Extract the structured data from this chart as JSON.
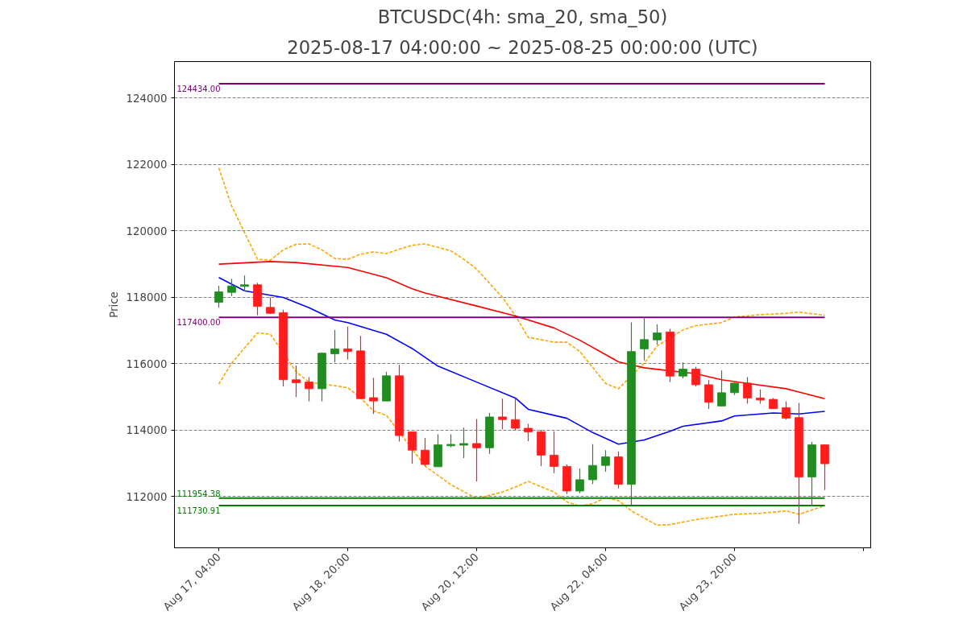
{
  "chart_data": {
    "type": "candlestick",
    "title": "BTCUSDC(4h: sma_20, sma_50)",
    "subtitle": "2025-08-17 04:00:00 ~ 2025-08-25 00:00:00 (UTC)",
    "ylabel": "Price",
    "x": [
      "2025-08-17T04:00",
      "2025-08-17T08:00",
      "2025-08-17T12:00",
      "2025-08-17T16:00",
      "2025-08-17T20:00",
      "2025-08-18T00:00",
      "2025-08-18T04:00",
      "2025-08-18T08:00",
      "2025-08-18T12:00",
      "2025-08-18T16:00",
      "2025-08-18T20:00",
      "2025-08-19T00:00",
      "2025-08-19T04:00",
      "2025-08-19T08:00",
      "2025-08-19T12:00",
      "2025-08-19T16:00",
      "2025-08-19T20:00",
      "2025-08-20T00:00",
      "2025-08-20T04:00",
      "2025-08-20T08:00",
      "2025-08-20T12:00",
      "2025-08-20T16:00",
      "2025-08-20T20:00",
      "2025-08-21T00:00",
      "2025-08-21T04:00",
      "2025-08-21T08:00",
      "2025-08-21T12:00",
      "2025-08-21T16:00",
      "2025-08-21T20:00",
      "2025-08-22T00:00",
      "2025-08-22T04:00",
      "2025-08-22T08:00",
      "2025-08-22T12:00",
      "2025-08-22T16:00",
      "2025-08-22T20:00",
      "2025-08-23T00:00",
      "2025-08-23T04:00",
      "2025-08-23T08:00",
      "2025-08-23T12:00",
      "2025-08-23T16:00",
      "2025-08-23T20:00",
      "2025-08-24T00:00",
      "2025-08-24T04:00",
      "2025-08-24T08:00",
      "2025-08-24T12:00",
      "2025-08-24T16:00",
      "2025-08-24T20:00",
      "2025-08-25T00:00"
    ],
    "ohlc": [
      [
        117850,
        118350,
        117690,
        118170
      ],
      [
        118150,
        118560,
        118040,
        118345
      ],
      [
        118330,
        118660,
        118180,
        118380
      ],
      [
        118380,
        118440,
        117460,
        117730
      ],
      [
        117700,
        118000,
        117500,
        117520
      ],
      [
        117540,
        117630,
        115320,
        115520
      ],
      [
        115520,
        115950,
        115000,
        115430
      ],
      [
        115450,
        115600,
        114870,
        115250
      ],
      [
        115250,
        116330,
        114870,
        116320
      ],
      [
        116300,
        117020,
        116040,
        116450
      ],
      [
        116450,
        117120,
        116130,
        116370
      ],
      [
        116390,
        116840,
        114950,
        114950
      ],
      [
        114980,
        115580,
        114490,
        114880
      ],
      [
        114880,
        115760,
        114880,
        115640
      ],
      [
        115640,
        115970,
        113660,
        113840
      ],
      [
        113950,
        113960,
        112990,
        113400
      ],
      [
        113400,
        113770,
        112920,
        112970
      ],
      [
        112900,
        113880,
        112900,
        113560
      ],
      [
        113530,
        113880,
        113490,
        113575
      ],
      [
        113550,
        114080,
        113160,
        113600
      ],
      [
        113600,
        114340,
        112460,
        113470
      ],
      [
        113470,
        114520,
        113290,
        114400
      ],
      [
        114400,
        114950,
        114030,
        114320
      ],
      [
        114320,
        114950,
        114000,
        114060
      ],
      [
        114060,
        114190,
        113670,
        113950
      ],
      [
        113950,
        114010,
        112920,
        113250
      ],
      [
        113250,
        113970,
        112710,
        112910
      ],
      [
        112910,
        112970,
        112080,
        112170
      ],
      [
        112170,
        112850,
        112100,
        112510
      ],
      [
        112510,
        113580,
        112380,
        112940
      ],
      [
        112940,
        113400,
        112750,
        113200
      ],
      [
        113200,
        113360,
        112250,
        112370
      ],
      [
        112370,
        117250,
        111750,
        116370
      ],
      [
        116450,
        117410,
        116100,
        116730
      ],
      [
        116720,
        117190,
        116580,
        116930
      ],
      [
        116960,
        117050,
        115450,
        115630
      ],
      [
        115630,
        116040,
        115560,
        115840
      ],
      [
        115840,
        115910,
        115320,
        115370
      ],
      [
        115370,
        115510,
        114640,
        114840
      ],
      [
        114730,
        115800,
        114720,
        115130
      ],
      [
        115130,
        115430,
        115060,
        115420
      ],
      [
        115420,
        115600,
        114800,
        114970
      ],
      [
        114970,
        115230,
        114800,
        114910
      ],
      [
        114930,
        114970,
        114640,
        114650
      ],
      [
        114680,
        114870,
        114320,
        114360
      ],
      [
        114380,
        114820,
        111180,
        112590
      ],
      [
        112590,
        113650,
        111710,
        113560
      ],
      [
        113560,
        113570,
        112200,
        112990
      ]
    ],
    "colors": [
      "#228b22",
      "#228b22",
      "#228b22",
      "#ff1c1c",
      "#ff1c1c",
      "#ff1c1c",
      "#ff1c1c",
      "#ff1c1c",
      "#228b22",
      "#228b22",
      "#ff1c1c",
      "#ff1c1c",
      "#ff1c1c",
      "#228b22",
      "#ff1c1c",
      "#ff1c1c",
      "#ff1c1c",
      "#228b22",
      "#228b22",
      "#228b22",
      "#ff1c1c",
      "#228b22",
      "#ff1c1c",
      "#ff1c1c",
      "#ff1c1c",
      "#ff1c1c",
      "#ff1c1c",
      "#ff1c1c",
      "#228b22",
      "#228b22",
      "#228b22",
      "#ff1c1c",
      "#228b22",
      "#228b22",
      "#228b22",
      "#ff1c1c",
      "#228b22",
      "#ff1c1c",
      "#ff1c1c",
      "#228b22",
      "#228b22",
      "#ff1c1c",
      "#ff1c1c",
      "#ff1c1c",
      "#ff1c1c",
      "#ff1c1c",
      "#228b22",
      "#ff1c1c"
    ],
    "series": [
      {
        "type": "line",
        "color": "#ffa500",
        "line_style": "dashed",
        "x": [
          "2025-08-17T04:00",
          "2025-08-17T08:00",
          "2025-08-17T16:00",
          "2025-08-17T20:00",
          "2025-08-18T00:00",
          "2025-08-18T04:00",
          "2025-08-18T08:00",
          "2025-08-18T12:00",
          "2025-08-18T16:00",
          "2025-08-18T20:00",
          "2025-08-19T00:00",
          "2025-08-19T04:00",
          "2025-08-19T08:00",
          "2025-08-19T12:00",
          "2025-08-19T16:00",
          "2025-08-19T20:00",
          "2025-08-20T04:00",
          "2025-08-20T08:00",
          "2025-08-20T12:00",
          "2025-08-20T20:00",
          "2025-08-21T00:00",
          "2025-08-21T04:00",
          "2025-08-21T12:00",
          "2025-08-21T16:00",
          "2025-08-21T20:00",
          "2025-08-22T04:00",
          "2025-08-22T08:00",
          "2025-08-22T16:00",
          "2025-08-22T20:00",
          "2025-08-23T04:00",
          "2025-08-23T08:00",
          "2025-08-23T16:00",
          "2025-08-23T20:00",
          "2025-08-24T04:00",
          "2025-08-24T12:00",
          "2025-08-24T16:00",
          "2025-08-25T00:00"
        ],
        "values": [
          121900,
          120750,
          119150,
          119120,
          119430,
          119600,
          119610,
          119430,
          119170,
          119150,
          119300,
          119370,
          119320,
          119450,
          119570,
          119610,
          119400,
          119150,
          118850,
          118000,
          117450,
          116800,
          116650,
          116650,
          116370,
          115410,
          115250,
          116020,
          116540,
          117020,
          117150,
          117240,
          117410,
          117480,
          117520,
          117560,
          117460
        ]
      },
      {
        "type": "line",
        "color": "#ffa500",
        "line_style": "dashed",
        "x": [
          "2025-08-17T04:00",
          "2025-08-17T08:00",
          "2025-08-17T16:00",
          "2025-08-17T20:00",
          "2025-08-18T04:00",
          "2025-08-18T08:00",
          "2025-08-18T16:00",
          "2025-08-18T20:00",
          "2025-08-19T00:00",
          "2025-08-19T04:00",
          "2025-08-19T08:00",
          "2025-08-19T20:00",
          "2025-08-20T04:00",
          "2025-08-20T12:00",
          "2025-08-20T20:00",
          "2025-08-21T00:00",
          "2025-08-21T04:00",
          "2025-08-21T12:00",
          "2025-08-21T16:00",
          "2025-08-21T20:00",
          "2025-08-22T00:00",
          "2025-08-22T04:00",
          "2025-08-22T08:00",
          "2025-08-22T12:00",
          "2025-08-22T20:00",
          "2025-08-23T00:00",
          "2025-08-23T08:00",
          "2025-08-23T20:00",
          "2025-08-24T04:00",
          "2025-08-24T12:00",
          "2025-08-24T16:00",
          "2025-08-25T00:00"
        ],
        "values": [
          115390,
          116020,
          116930,
          116890,
          115760,
          115450,
          115340,
          115280,
          114970,
          114580,
          114450,
          112920,
          112360,
          111940,
          112140,
          112290,
          112460,
          112140,
          111840,
          111720,
          111790,
          111970,
          111880,
          111570,
          111140,
          111160,
          111310,
          111470,
          111500,
          111570,
          111470,
          111730
        ]
      },
      {
        "type": "line",
        "color": "#0000ff",
        "x": [
          "2025-08-17T04:00",
          "2025-08-17T12:00",
          "2025-08-18T00:00",
          "2025-08-18T08:00",
          "2025-08-18T16:00",
          "2025-08-18T20:00",
          "2025-08-19T08:00",
          "2025-08-19T16:00",
          "2025-08-20T00:00",
          "2025-08-20T12:00",
          "2025-08-21T00:00",
          "2025-08-21T04:00",
          "2025-08-21T16:00",
          "2025-08-22T00:00",
          "2025-08-22T08:00",
          "2025-08-22T16:00",
          "2025-08-23T00:00",
          "2025-08-23T04:00",
          "2025-08-23T16:00",
          "2025-08-23T20:00",
          "2025-08-24T08:00",
          "2025-08-24T16:00",
          "2025-08-25T00:00"
        ],
        "values": [
          118600,
          118200,
          118000,
          117690,
          117320,
          117240,
          116890,
          116460,
          115930,
          115450,
          114970,
          114630,
          114360,
          113930,
          113580,
          113710,
          113970,
          114120,
          114280,
          114430,
          114520,
          114490,
          114570
        ]
      },
      {
        "type": "line",
        "color": "#ff0000",
        "x": [
          "2025-08-17T04:00",
          "2025-08-17T20:00",
          "2025-08-18T04:00",
          "2025-08-18T20:00",
          "2025-08-19T08:00",
          "2025-08-19T16:00",
          "2025-08-19T20:00",
          "2025-08-20T12:00",
          "2025-08-21T00:00",
          "2025-08-21T12:00",
          "2025-08-21T20:00",
          "2025-08-22T08:00",
          "2025-08-22T16:00",
          "2025-08-23T00:00",
          "2025-08-23T08:00",
          "2025-08-23T16:00",
          "2025-08-24T00:00",
          "2025-08-24T12:00",
          "2025-08-24T16:00",
          "2025-08-25T00:00"
        ],
        "values": [
          119000,
          119080,
          119050,
          118900,
          118590,
          118260,
          118130,
          117740,
          117440,
          117080,
          116710,
          116060,
          115880,
          115790,
          115700,
          115520,
          115410,
          115250,
          115150,
          114950
        ]
      }
    ],
    "ref_lines": [
      {
        "axis": "y",
        "value": 124434.0,
        "label": "124434.00",
        "color": "#800080"
      },
      {
        "axis": "y",
        "value": 117400.0,
        "label": "117400.00",
        "color": "#800080"
      },
      {
        "axis": "y",
        "value": 111954.38,
        "label": "111954.38",
        "color": "#008000"
      },
      {
        "axis": "y",
        "value": 111730.91,
        "label": "111730.91",
        "color": "#008000"
      }
    ],
    "xlim": [
      "2025-08-16T14:15",
      "2025-08-25T14:15"
    ],
    "xticks": [
      {
        "value": "2025-08-17T04:00",
        "label": "Aug 17, 04:00"
      },
      {
        "value": "2025-08-18T20:00",
        "label": "Aug 18, 20:00"
      },
      {
        "value": "2025-08-20T12:00",
        "label": "Aug 20, 12:00"
      },
      {
        "value": "2025-08-22T04:00",
        "label": "Aug 22, 04:00"
      },
      {
        "value": "2025-08-23T20:00",
        "label": "Aug 23, 20:00"
      },
      {
        "value": "2025-08-25T12:00",
        "label": null
      }
    ],
    "ylim": [
      110460,
      125100
    ],
    "yticks": [
      112000,
      114000,
      116000,
      118000,
      120000,
      122000,
      124000
    ],
    "grid": "y"
  }
}
